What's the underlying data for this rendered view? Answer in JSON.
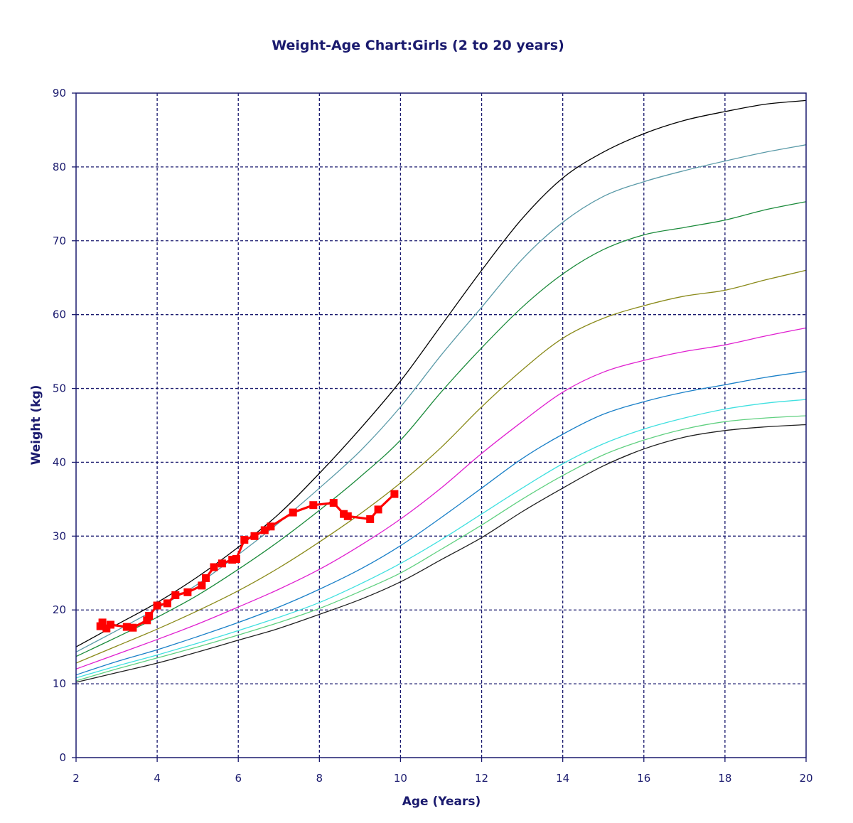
{
  "chart_data": {
    "type": "line",
    "title": "Weight-Age Chart:Girls (2 to 20 years)",
    "xlabel": "Age (Years)",
    "ylabel": "Weight (kg)",
    "xlim": [
      2,
      20
    ],
    "ylim": [
      0,
      90
    ],
    "x_ticks": [
      "2",
      "4",
      "6",
      "8",
      "10",
      "12",
      "14",
      "16",
      "18",
      "20"
    ],
    "y_ticks": [
      "0",
      "10",
      "20",
      "30",
      "40",
      "50",
      "60",
      "70",
      "80",
      "90"
    ],
    "grid": true,
    "legend": "none",
    "colors": {
      "axis": "#1a1a6e",
      "grid": "#1a1a6e",
      "patient": "#ff0000"
    },
    "reference_curves": [
      {
        "color": "#000000",
        "x": [
          2,
          3,
          4,
          5,
          6,
          7,
          8,
          9,
          10,
          11,
          12,
          13,
          14,
          15,
          16,
          17,
          18,
          19,
          20
        ],
        "y": [
          15,
          18,
          21,
          24.5,
          28.5,
          33,
          38.5,
          44.5,
          51,
          58.5,
          66,
          73,
          78.5,
          82,
          84.5,
          86.3,
          87.5,
          88.5,
          89
        ]
      },
      {
        "color": "#5a9aa8",
        "x": [
          2,
          3,
          4,
          5,
          6,
          7,
          8,
          9,
          10,
          11,
          12,
          13,
          14,
          15,
          16,
          17,
          18,
          19,
          20
        ],
        "y": [
          14.3,
          17.2,
          20.2,
          23.5,
          27.5,
          31.8,
          36.5,
          41.5,
          47.5,
          54.5,
          61,
          67.5,
          72.5,
          76,
          78,
          79.5,
          80.8,
          82,
          83
        ]
      },
      {
        "color": "#1a8a3a",
        "x": [
          2,
          3,
          4,
          5,
          6,
          7,
          8,
          9,
          10,
          11,
          12,
          13,
          14,
          15,
          16,
          17,
          18,
          19,
          20
        ],
        "y": [
          13.7,
          16.3,
          19,
          22,
          25.5,
          29.3,
          33.5,
          38,
          43,
          49.5,
          55.5,
          61,
          65.5,
          68.8,
          70.8,
          71.8,
          72.8,
          74.2,
          75.3
        ]
      },
      {
        "color": "#8a8a1a",
        "x": [
          2,
          3,
          4,
          5,
          6,
          7,
          8,
          9,
          10,
          11,
          12,
          13,
          14,
          15,
          16,
          17,
          18,
          19,
          20
        ],
        "y": [
          12.8,
          15.1,
          17.4,
          19.9,
          22.6,
          25.7,
          29.2,
          33,
          37.2,
          42,
          47.5,
          52.5,
          56.8,
          59.5,
          61.2,
          62.5,
          63.3,
          64.7,
          66
        ]
      },
      {
        "color": "#e020d0",
        "x": [
          2,
          3,
          4,
          5,
          6,
          7,
          8,
          9,
          10,
          11,
          12,
          13,
          14,
          15,
          16,
          17,
          18,
          19,
          20
        ],
        "y": [
          12,
          14,
          16,
          18.1,
          20.4,
          22.8,
          25.5,
          28.7,
          32.3,
          36.5,
          41.2,
          45.5,
          49.5,
          52.2,
          53.8,
          55,
          55.9,
          57.1,
          58.2
        ]
      },
      {
        "color": "#1a80c8",
        "x": [
          2,
          3,
          4,
          5,
          6,
          7,
          8,
          9,
          10,
          11,
          12,
          13,
          14,
          15,
          16,
          17,
          18,
          19,
          20
        ],
        "y": [
          11.2,
          13,
          14.6,
          16.4,
          18.3,
          20.4,
          22.8,
          25.5,
          28.7,
          32.5,
          36.5,
          40.5,
          43.8,
          46.5,
          48.2,
          49.5,
          50.5,
          51.5,
          52.3
        ]
      },
      {
        "color": "#40e0e0",
        "x": [
          2,
          3,
          4,
          5,
          6,
          7,
          8,
          9,
          10,
          11,
          12,
          13,
          14,
          15,
          16,
          17,
          18,
          19,
          20
        ],
        "y": [
          10.8,
          12.4,
          13.9,
          15.5,
          17.2,
          19,
          21,
          23.5,
          26.3,
          29.5,
          33,
          36.5,
          39.8,
          42.5,
          44.5,
          46,
          47.2,
          48,
          48.5
        ]
      },
      {
        "color": "#60d080",
        "x": [
          2,
          3,
          4,
          5,
          6,
          7,
          8,
          9,
          10,
          11,
          12,
          13,
          14,
          15,
          16,
          17,
          18,
          19,
          20
        ],
        "y": [
          10.4,
          12,
          13.5,
          15,
          16.6,
          18.3,
          20.2,
          22.5,
          25,
          28.2,
          31.5,
          35,
          38.2,
          41,
          43,
          44.5,
          45.5,
          46,
          46.3
        ]
      },
      {
        "color": "#202020",
        "x": [
          2,
          3,
          4,
          5,
          6,
          7,
          8,
          9,
          10,
          11,
          12,
          13,
          14,
          15,
          16,
          17,
          18,
          19,
          20
        ],
        "y": [
          10.2,
          11.5,
          12.8,
          14.3,
          15.9,
          17.5,
          19.4,
          21.4,
          23.8,
          26.8,
          29.8,
          33.3,
          36.5,
          39.5,
          41.8,
          43.4,
          44.3,
          44.8,
          45.1
        ]
      }
    ],
    "series": [
      {
        "color": "#ff0000",
        "x": [
          2.6,
          2.65,
          2.75,
          2.85,
          3.25,
          3.4,
          3.75,
          3.8,
          4.0,
          4.25,
          4.45,
          4.75,
          5.1,
          5.2,
          5.4,
          5.6,
          5.85,
          5.95,
          6.15,
          6.4,
          6.65,
          6.8,
          7.35,
          7.85,
          8.35,
          8.6,
          8.7,
          9.25,
          9.45,
          9.85
        ],
        "y": [
          17.8,
          18.3,
          17.5,
          18.0,
          17.7,
          17.6,
          18.6,
          19.2,
          20.6,
          20.9,
          22.0,
          22.4,
          23.3,
          24.3,
          25.8,
          26.3,
          26.8,
          26.9,
          29.5,
          30.0,
          30.8,
          31.3,
          33.2,
          34.2,
          34.5,
          33.0,
          32.7,
          32.3,
          33.6,
          35.7
        ]
      }
    ]
  }
}
